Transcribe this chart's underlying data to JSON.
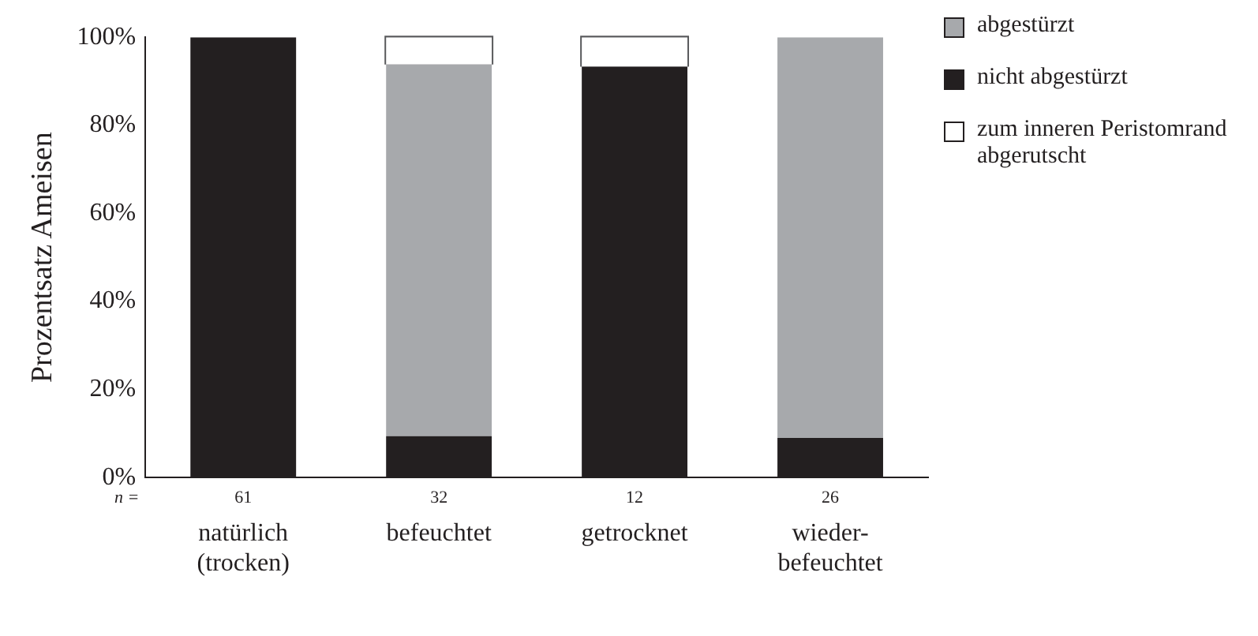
{
  "chart_data": {
    "type": "bar",
    "stacked": true,
    "ylabel": "Prozentsatz Ameisen",
    "categories": [
      "natürlich (trocken)",
      "befeuchtet",
      "getrocknet",
      "wieder-befeuchtet"
    ],
    "series": [
      {
        "name": "nicht abgestürzt",
        "color": "#231f20",
        "values": [
          100,
          9.4,
          93.3,
          9
        ]
      },
      {
        "name": "abgestürzt",
        "color": "#a7a9ac",
        "values": [
          0,
          84.4,
          0,
          91
        ]
      },
      {
        "name": "zum inneren Peristomrand abgerutscht",
        "color": "#ffffff",
        "values": [
          0,
          6.2,
          6.7,
          0
        ]
      }
    ],
    "ylim": [
      0,
      100
    ],
    "yticks": [
      {
        "value": 0,
        "label": "0%"
      },
      {
        "value": 20,
        "label": "20%"
      },
      {
        "value": 40,
        "label": "40%"
      },
      {
        "value": 60,
        "label": "60%"
      },
      {
        "value": 80,
        "label": "80%"
      },
      {
        "value": 100,
        "label": "100%"
      }
    ],
    "grid": false,
    "legend": "top right",
    "annotations": [
      "n =",
      "61",
      "32",
      "12",
      "26"
    ]
  }
}
